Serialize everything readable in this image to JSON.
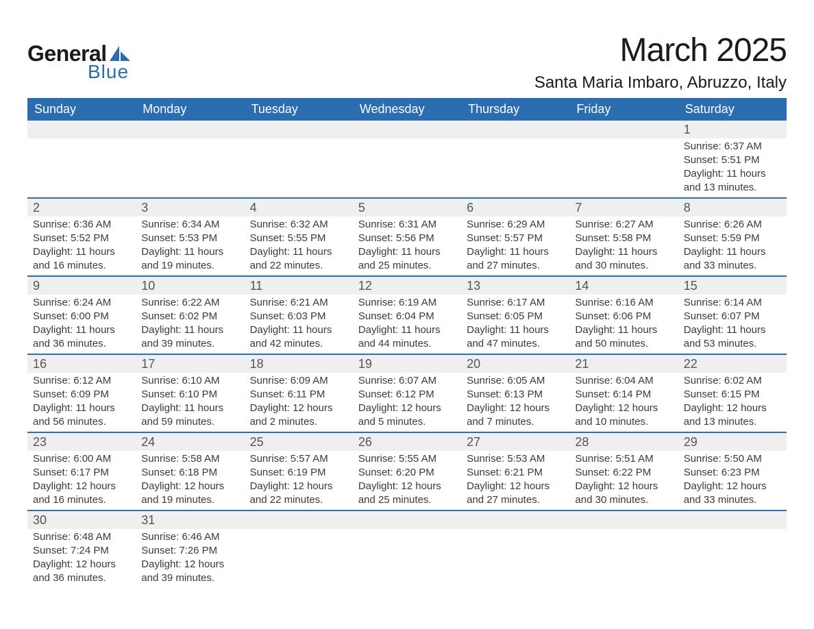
{
  "brand": {
    "word1": "General",
    "word2": "Blue",
    "accent_color": "#2a6db0",
    "text_color": "#1a1a1a"
  },
  "title": "March 2025",
  "location": "Santa Maria Imbaro, Abruzzo, Italy",
  "colors": {
    "header_bg": "#2a6db0",
    "header_text": "#ffffff",
    "daynum_bg": "#efefef",
    "daynum_text": "#555555",
    "body_text": "#3a3a3a",
    "row_divider": "#2a6db0",
    "page_bg": "#ffffff"
  },
  "fonts": {
    "family": "Arial, Helvetica, sans-serif",
    "title_size_pt": 36,
    "location_size_pt": 18,
    "dow_size_pt": 14,
    "daynum_size_pt": 14,
    "body_size_pt": 11
  },
  "days_of_week": [
    "Sunday",
    "Monday",
    "Tuesday",
    "Wednesday",
    "Thursday",
    "Friday",
    "Saturday"
  ],
  "weeks": [
    [
      {
        "day": "",
        "sunrise": "",
        "sunset": "",
        "daylight1": "",
        "daylight2": ""
      },
      {
        "day": "",
        "sunrise": "",
        "sunset": "",
        "daylight1": "",
        "daylight2": ""
      },
      {
        "day": "",
        "sunrise": "",
        "sunset": "",
        "daylight1": "",
        "daylight2": ""
      },
      {
        "day": "",
        "sunrise": "",
        "sunset": "",
        "daylight1": "",
        "daylight2": ""
      },
      {
        "day": "",
        "sunrise": "",
        "sunset": "",
        "daylight1": "",
        "daylight2": ""
      },
      {
        "day": "",
        "sunrise": "",
        "sunset": "",
        "daylight1": "",
        "daylight2": ""
      },
      {
        "day": "1",
        "sunrise": "Sunrise: 6:37 AM",
        "sunset": "Sunset: 5:51 PM",
        "daylight1": "Daylight: 11 hours",
        "daylight2": "and 13 minutes."
      }
    ],
    [
      {
        "day": "2",
        "sunrise": "Sunrise: 6:36 AM",
        "sunset": "Sunset: 5:52 PM",
        "daylight1": "Daylight: 11 hours",
        "daylight2": "and 16 minutes."
      },
      {
        "day": "3",
        "sunrise": "Sunrise: 6:34 AM",
        "sunset": "Sunset: 5:53 PM",
        "daylight1": "Daylight: 11 hours",
        "daylight2": "and 19 minutes."
      },
      {
        "day": "4",
        "sunrise": "Sunrise: 6:32 AM",
        "sunset": "Sunset: 5:55 PM",
        "daylight1": "Daylight: 11 hours",
        "daylight2": "and 22 minutes."
      },
      {
        "day": "5",
        "sunrise": "Sunrise: 6:31 AM",
        "sunset": "Sunset: 5:56 PM",
        "daylight1": "Daylight: 11 hours",
        "daylight2": "and 25 minutes."
      },
      {
        "day": "6",
        "sunrise": "Sunrise: 6:29 AM",
        "sunset": "Sunset: 5:57 PM",
        "daylight1": "Daylight: 11 hours",
        "daylight2": "and 27 minutes."
      },
      {
        "day": "7",
        "sunrise": "Sunrise: 6:27 AM",
        "sunset": "Sunset: 5:58 PM",
        "daylight1": "Daylight: 11 hours",
        "daylight2": "and 30 minutes."
      },
      {
        "day": "8",
        "sunrise": "Sunrise: 6:26 AM",
        "sunset": "Sunset: 5:59 PM",
        "daylight1": "Daylight: 11 hours",
        "daylight2": "and 33 minutes."
      }
    ],
    [
      {
        "day": "9",
        "sunrise": "Sunrise: 6:24 AM",
        "sunset": "Sunset: 6:00 PM",
        "daylight1": "Daylight: 11 hours",
        "daylight2": "and 36 minutes."
      },
      {
        "day": "10",
        "sunrise": "Sunrise: 6:22 AM",
        "sunset": "Sunset: 6:02 PM",
        "daylight1": "Daylight: 11 hours",
        "daylight2": "and 39 minutes."
      },
      {
        "day": "11",
        "sunrise": "Sunrise: 6:21 AM",
        "sunset": "Sunset: 6:03 PM",
        "daylight1": "Daylight: 11 hours",
        "daylight2": "and 42 minutes."
      },
      {
        "day": "12",
        "sunrise": "Sunrise: 6:19 AM",
        "sunset": "Sunset: 6:04 PM",
        "daylight1": "Daylight: 11 hours",
        "daylight2": "and 44 minutes."
      },
      {
        "day": "13",
        "sunrise": "Sunrise: 6:17 AM",
        "sunset": "Sunset: 6:05 PM",
        "daylight1": "Daylight: 11 hours",
        "daylight2": "and 47 minutes."
      },
      {
        "day": "14",
        "sunrise": "Sunrise: 6:16 AM",
        "sunset": "Sunset: 6:06 PM",
        "daylight1": "Daylight: 11 hours",
        "daylight2": "and 50 minutes."
      },
      {
        "day": "15",
        "sunrise": "Sunrise: 6:14 AM",
        "sunset": "Sunset: 6:07 PM",
        "daylight1": "Daylight: 11 hours",
        "daylight2": "and 53 minutes."
      }
    ],
    [
      {
        "day": "16",
        "sunrise": "Sunrise: 6:12 AM",
        "sunset": "Sunset: 6:09 PM",
        "daylight1": "Daylight: 11 hours",
        "daylight2": "and 56 minutes."
      },
      {
        "day": "17",
        "sunrise": "Sunrise: 6:10 AM",
        "sunset": "Sunset: 6:10 PM",
        "daylight1": "Daylight: 11 hours",
        "daylight2": "and 59 minutes."
      },
      {
        "day": "18",
        "sunrise": "Sunrise: 6:09 AM",
        "sunset": "Sunset: 6:11 PM",
        "daylight1": "Daylight: 12 hours",
        "daylight2": "and 2 minutes."
      },
      {
        "day": "19",
        "sunrise": "Sunrise: 6:07 AM",
        "sunset": "Sunset: 6:12 PM",
        "daylight1": "Daylight: 12 hours",
        "daylight2": "and 5 minutes."
      },
      {
        "day": "20",
        "sunrise": "Sunrise: 6:05 AM",
        "sunset": "Sunset: 6:13 PM",
        "daylight1": "Daylight: 12 hours",
        "daylight2": "and 7 minutes."
      },
      {
        "day": "21",
        "sunrise": "Sunrise: 6:04 AM",
        "sunset": "Sunset: 6:14 PM",
        "daylight1": "Daylight: 12 hours",
        "daylight2": "and 10 minutes."
      },
      {
        "day": "22",
        "sunrise": "Sunrise: 6:02 AM",
        "sunset": "Sunset: 6:15 PM",
        "daylight1": "Daylight: 12 hours",
        "daylight2": "and 13 minutes."
      }
    ],
    [
      {
        "day": "23",
        "sunrise": "Sunrise: 6:00 AM",
        "sunset": "Sunset: 6:17 PM",
        "daylight1": "Daylight: 12 hours",
        "daylight2": "and 16 minutes."
      },
      {
        "day": "24",
        "sunrise": "Sunrise: 5:58 AM",
        "sunset": "Sunset: 6:18 PM",
        "daylight1": "Daylight: 12 hours",
        "daylight2": "and 19 minutes."
      },
      {
        "day": "25",
        "sunrise": "Sunrise: 5:57 AM",
        "sunset": "Sunset: 6:19 PM",
        "daylight1": "Daylight: 12 hours",
        "daylight2": "and 22 minutes."
      },
      {
        "day": "26",
        "sunrise": "Sunrise: 5:55 AM",
        "sunset": "Sunset: 6:20 PM",
        "daylight1": "Daylight: 12 hours",
        "daylight2": "and 25 minutes."
      },
      {
        "day": "27",
        "sunrise": "Sunrise: 5:53 AM",
        "sunset": "Sunset: 6:21 PM",
        "daylight1": "Daylight: 12 hours",
        "daylight2": "and 27 minutes."
      },
      {
        "day": "28",
        "sunrise": "Sunrise: 5:51 AM",
        "sunset": "Sunset: 6:22 PM",
        "daylight1": "Daylight: 12 hours",
        "daylight2": "and 30 minutes."
      },
      {
        "day": "29",
        "sunrise": "Sunrise: 5:50 AM",
        "sunset": "Sunset: 6:23 PM",
        "daylight1": "Daylight: 12 hours",
        "daylight2": "and 33 minutes."
      }
    ],
    [
      {
        "day": "30",
        "sunrise": "Sunrise: 6:48 AM",
        "sunset": "Sunset: 7:24 PM",
        "daylight1": "Daylight: 12 hours",
        "daylight2": "and 36 minutes."
      },
      {
        "day": "31",
        "sunrise": "Sunrise: 6:46 AM",
        "sunset": "Sunset: 7:26 PM",
        "daylight1": "Daylight: 12 hours",
        "daylight2": "and 39 minutes."
      },
      {
        "day": "",
        "sunrise": "",
        "sunset": "",
        "daylight1": "",
        "daylight2": ""
      },
      {
        "day": "",
        "sunrise": "",
        "sunset": "",
        "daylight1": "",
        "daylight2": ""
      },
      {
        "day": "",
        "sunrise": "",
        "sunset": "",
        "daylight1": "",
        "daylight2": ""
      },
      {
        "day": "",
        "sunrise": "",
        "sunset": "",
        "daylight1": "",
        "daylight2": ""
      },
      {
        "day": "",
        "sunrise": "",
        "sunset": "",
        "daylight1": "",
        "daylight2": ""
      }
    ]
  ]
}
